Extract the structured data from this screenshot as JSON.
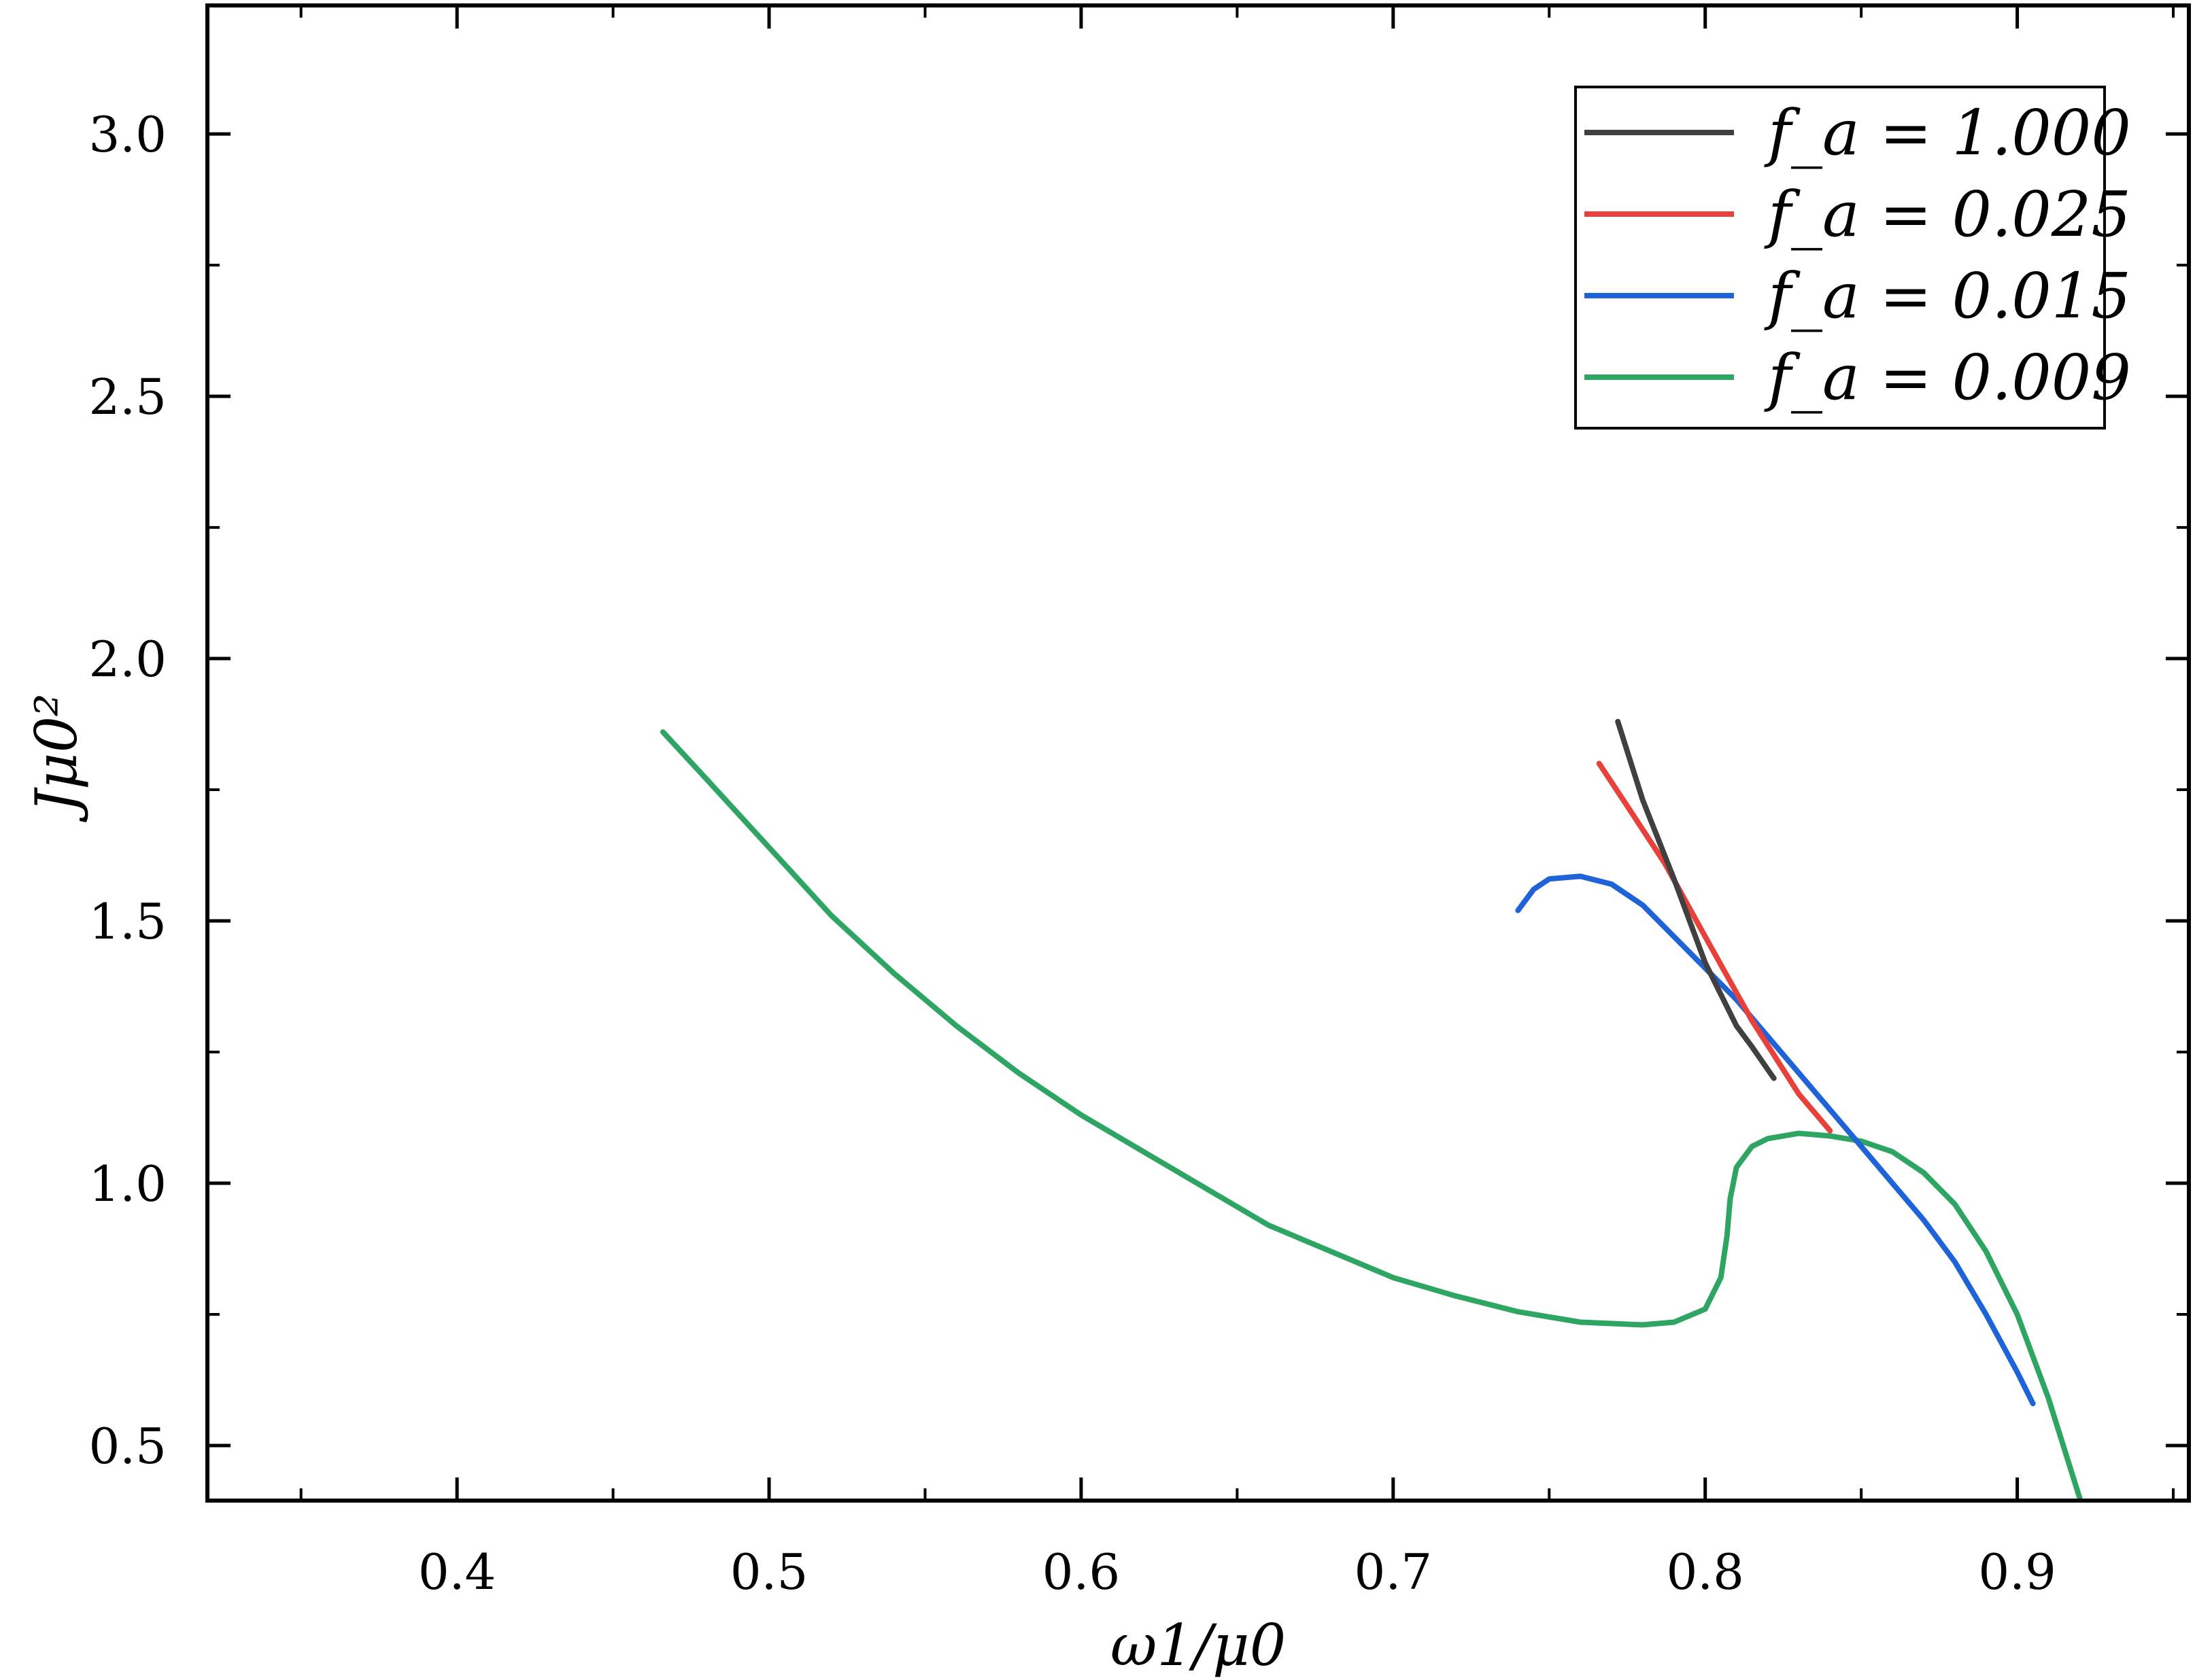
{
  "chart_data": {
    "type": "line",
    "title": "",
    "xlabel": "ω1/μ0",
    "ylabel": "Jμ0²",
    "xlim": [
      0.32,
      0.955
    ],
    "ylim": [
      0.395,
      3.245
    ],
    "x_ticks": [
      0.4,
      0.5,
      0.6,
      0.7,
      0.8,
      0.9
    ],
    "x_tick_labels": [
      "0.4",
      "0.5",
      "0.6",
      "0.7",
      "0.8",
      "0.9"
    ],
    "y_ticks": [
      0.5,
      1.0,
      1.5,
      2.0,
      2.5,
      3.0
    ],
    "y_tick_labels": [
      "0.5",
      "1.0",
      "1.5",
      "2.0",
      "2.5",
      "3.0"
    ],
    "grid": false,
    "legend_position": "top-right",
    "series": [
      {
        "name": "f_a = 1.000",
        "color": "#404040",
        "x": [
          0.772,
          0.78,
          0.79,
          0.8,
          0.81,
          0.815,
          0.822
        ],
        "y": [
          1.88,
          1.73,
          1.58,
          1.42,
          1.3,
          1.26,
          1.2
        ]
      },
      {
        "name": "f_a = 0.025",
        "color": "#e8403a",
        "x": [
          0.766,
          0.776,
          0.787,
          0.8,
          0.815,
          0.83,
          0.84
        ],
        "y": [
          1.8,
          1.71,
          1.61,
          1.47,
          1.31,
          1.17,
          1.1
        ]
      },
      {
        "name": "f_a = 0.015",
        "color": "#1f63d9",
        "x": [
          0.74,
          0.745,
          0.75,
          0.76,
          0.77,
          0.78,
          0.79,
          0.8,
          0.81,
          0.82,
          0.83,
          0.84,
          0.85,
          0.86,
          0.87,
          0.88,
          0.89,
          0.9,
          0.905
        ],
        "y": [
          1.52,
          1.56,
          1.58,
          1.585,
          1.57,
          1.53,
          1.47,
          1.41,
          1.35,
          1.28,
          1.21,
          1.14,
          1.07,
          1.0,
          0.93,
          0.85,
          0.75,
          0.64,
          0.58
        ]
      },
      {
        "name": "f_a = 0.009",
        "color": "#2ea562",
        "x": [
          0.466,
          0.48,
          0.5,
          0.52,
          0.54,
          0.56,
          0.58,
          0.6,
          0.62,
          0.64,
          0.66,
          0.68,
          0.7,
          0.72,
          0.74,
          0.76,
          0.78,
          0.79,
          0.8,
          0.805,
          0.807,
          0.808,
          0.81,
          0.815,
          0.82,
          0.83,
          0.84,
          0.85,
          0.86,
          0.87,
          0.88,
          0.89,
          0.9,
          0.91,
          0.92
        ],
        "y": [
          1.86,
          1.77,
          1.64,
          1.51,
          1.4,
          1.3,
          1.21,
          1.13,
          1.06,
          0.99,
          0.92,
          0.87,
          0.82,
          0.785,
          0.755,
          0.735,
          0.73,
          0.735,
          0.76,
          0.82,
          0.9,
          0.97,
          1.03,
          1.07,
          1.085,
          1.095,
          1.09,
          1.08,
          1.06,
          1.02,
          0.96,
          0.87,
          0.75,
          0.59,
          0.4
        ]
      }
    ]
  }
}
